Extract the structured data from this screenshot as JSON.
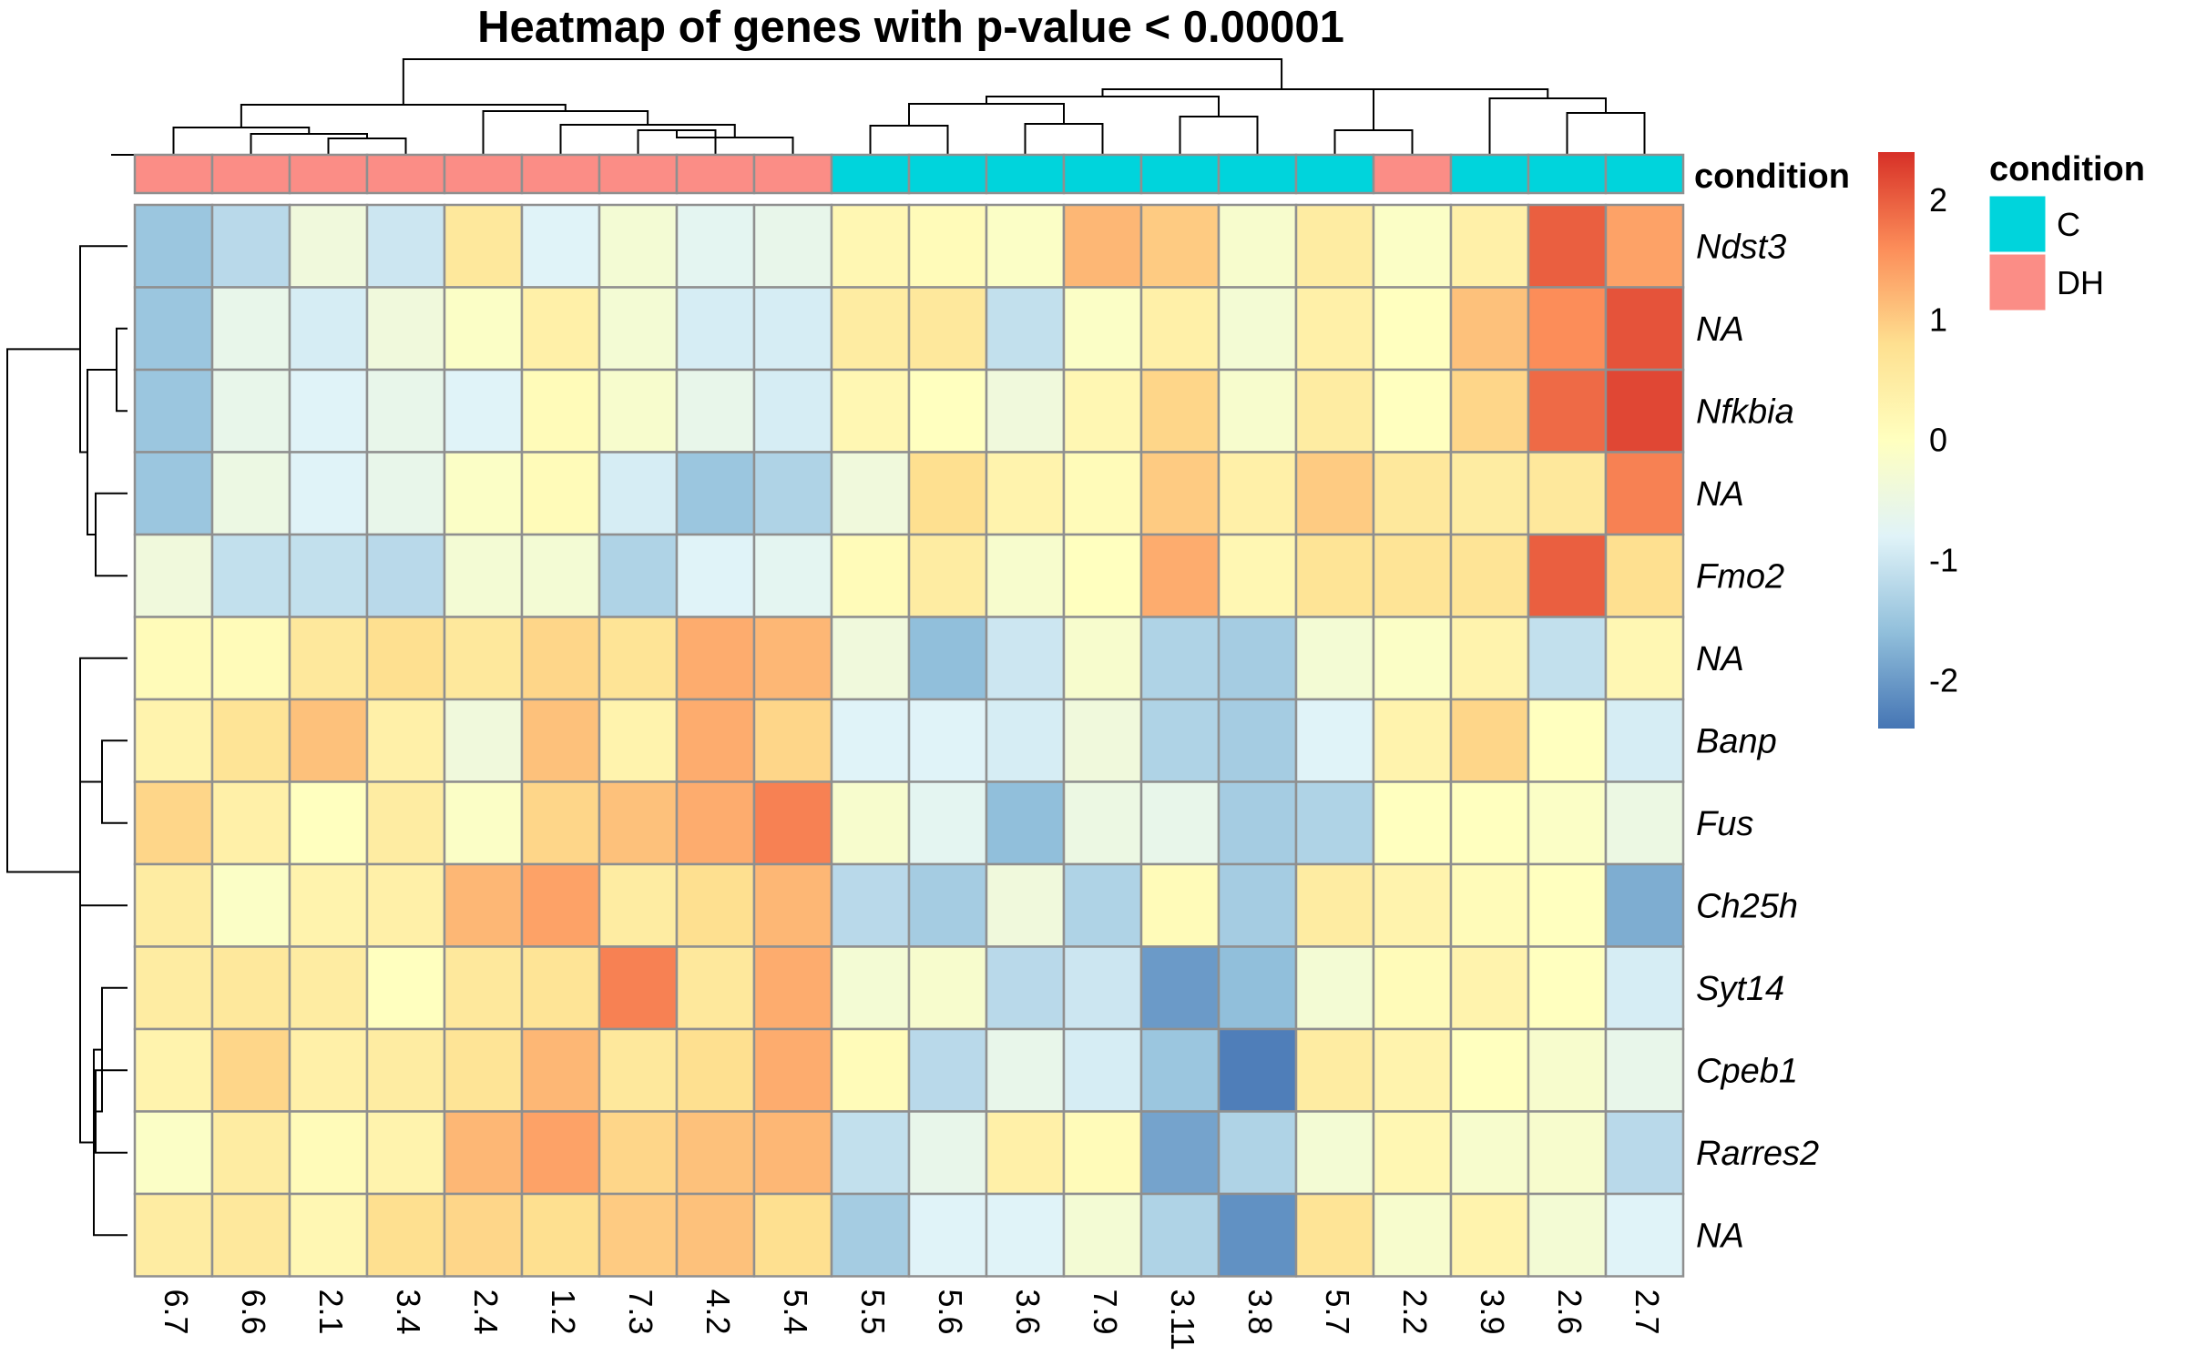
{
  "chart_data": {
    "type": "heatmap",
    "title": "Heatmap of genes with p-value < 0.00001",
    "columns": [
      "6.7",
      "6.6",
      "2.1",
      "3.4",
      "2.4",
      "1.2",
      "7.3",
      "4.2",
      "5.4",
      "5.5",
      "5.6",
      "3.6",
      "7.9",
      "3.11",
      "3.8",
      "5.7",
      "2.2",
      "3.9",
      "2.6",
      "2.7"
    ],
    "rows": [
      "Ndst3",
      "NA",
      "Nfkbia",
      "NA",
      "Fmo2",
      "NA",
      "Banp",
      "Fus",
      "Ch25h",
      "Syt14",
      "Cpeb1",
      "Rarres2",
      "NA"
    ],
    "values": [
      [
        -1.5,
        -1.2,
        -0.4,
        -1.0,
        0.6,
        -0.8,
        -0.3,
        -0.7,
        -0.6,
        0.2,
        0.1,
        -0.1,
        1.2,
        1.0,
        -0.2,
        0.5,
        -0.1,
        0.4,
        2.0,
        1.4
      ],
      [
        -1.5,
        -0.6,
        -0.9,
        -0.4,
        -0.1,
        0.4,
        -0.3,
        -0.9,
        -0.9,
        0.5,
        0.6,
        -1.1,
        -0.1,
        0.4,
        -0.3,
        0.4,
        0.0,
        1.1,
        1.6,
        2.1
      ],
      [
        -1.5,
        -0.6,
        -0.8,
        -0.6,
        -0.8,
        0.1,
        -0.2,
        -0.6,
        -0.9,
        0.2,
        0.0,
        -0.4,
        0.2,
        0.9,
        -0.2,
        0.5,
        0.0,
        0.9,
        1.9,
        2.2
      ],
      [
        -1.5,
        -0.5,
        -0.8,
        -0.6,
        -0.1,
        0.1,
        -0.9,
        -1.5,
        -1.3,
        -0.4,
        0.8,
        0.3,
        0.1,
        1.0,
        0.4,
        1.0,
        0.6,
        0.5,
        0.6,
        1.7
      ],
      [
        -0.4,
        -1.1,
        -1.1,
        -1.2,
        -0.3,
        -0.3,
        -1.3,
        -0.8,
        -0.7,
        0.1,
        0.5,
        -0.2,
        0.0,
        1.3,
        0.2,
        0.7,
        0.7,
        0.7,
        2.0,
        0.8
      ],
      [
        0.1,
        0.1,
        0.6,
        0.8,
        0.6,
        0.9,
        0.7,
        1.3,
        1.2,
        -0.4,
        -1.6,
        -1.0,
        -0.2,
        -1.3,
        -1.4,
        -0.3,
        -0.1,
        0.3,
        -1.1,
        0.2
      ],
      [
        0.3,
        0.7,
        1.1,
        0.4,
        -0.4,
        1.1,
        0.3,
        1.3,
        0.9,
        -0.8,
        -0.8,
        -0.9,
        -0.4,
        -1.3,
        -1.4,
        -0.8,
        0.3,
        0.9,
        0.0,
        -0.9
      ],
      [
        0.9,
        0.4,
        0.0,
        0.5,
        -0.1,
        0.9,
        1.1,
        1.3,
        1.7,
        -0.2,
        -0.7,
        -1.6,
        -0.5,
        -0.6,
        -1.4,
        -1.3,
        0.0,
        0.0,
        -0.1,
        -0.5
      ],
      [
        0.5,
        -0.1,
        0.3,
        0.4,
        1.2,
        1.4,
        0.5,
        0.8,
        1.2,
        -1.2,
        -1.4,
        -0.4,
        -1.3,
        0.1,
        -1.4,
        0.5,
        0.3,
        0.1,
        0.0,
        -1.8
      ],
      [
        0.5,
        0.6,
        0.5,
        0.0,
        0.6,
        0.7,
        1.7,
        0.6,
        1.3,
        -0.3,
        -0.2,
        -1.2,
        -1.0,
        -2.0,
        -1.6,
        -0.3,
        0.1,
        0.3,
        0.0,
        -0.9
      ],
      [
        0.3,
        0.9,
        0.4,
        0.5,
        0.7,
        1.2,
        0.6,
        0.8,
        1.3,
        0.1,
        -1.2,
        -0.6,
        -0.9,
        -1.5,
        -2.3,
        0.5,
        0.3,
        0.0,
        -0.2,
        -0.6
      ],
      [
        -0.1,
        0.5,
        0.1,
        0.3,
        1.2,
        1.4,
        0.9,
        1.1,
        1.2,
        -1.1,
        -0.6,
        0.4,
        0.1,
        -1.9,
        -1.3,
        -0.3,
        0.2,
        -0.2,
        -0.2,
        -1.2
      ],
      [
        0.5,
        0.6,
        0.2,
        0.8,
        0.9,
        0.8,
        1.0,
        1.1,
        0.8,
        -1.4,
        -0.8,
        -0.8,
        -0.3,
        -1.3,
        -2.1,
        0.7,
        -0.2,
        0.3,
        -0.3,
        -0.8
      ]
    ],
    "annotation": {
      "label": "condition",
      "column_conditions": [
        "DH",
        "DH",
        "DH",
        "DH",
        "DH",
        "DH",
        "DH",
        "DH",
        "DH",
        "C",
        "C",
        "C",
        "C",
        "C",
        "C",
        "C",
        "DH",
        "C",
        "C",
        "C"
      ],
      "legend_title": "condition",
      "levels": [
        {
          "name": "C",
          "color": "#00D4DC"
        },
        {
          "name": "DH",
          "color": "#FB8D86"
        }
      ]
    },
    "color_scale": {
      "range": [
        -2.4,
        2.4
      ],
      "ticks": [
        2,
        1,
        0,
        -1,
        -2
      ],
      "tick_labels": [
        "2",
        "1",
        "0",
        "-1",
        "-2"
      ],
      "colors": [
        "#4575B4",
        "#91BFDB",
        "#E0F3F8",
        "#FFFFBF",
        "#FEE090",
        "#FC8D59",
        "#D73027"
      ]
    },
    "dendrograms": "both-rows-and-columns",
    "legend_placement": "right"
  }
}
